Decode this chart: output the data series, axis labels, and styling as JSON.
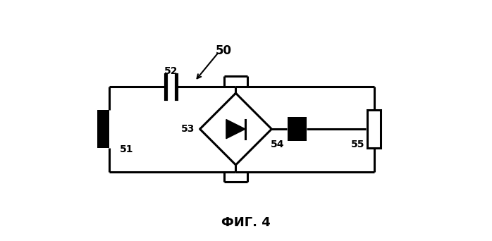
{
  "title": "ФИГ. 4",
  "label_50": "50",
  "label_51": "51",
  "label_52": "52",
  "label_53": "53",
  "label_54": "54",
  "label_55": "55",
  "bg_color": "#ffffff",
  "line_color": "#000000",
  "line_width": 2.2,
  "fig_width": 6.98,
  "fig_height": 3.42,
  "dpi": 100
}
